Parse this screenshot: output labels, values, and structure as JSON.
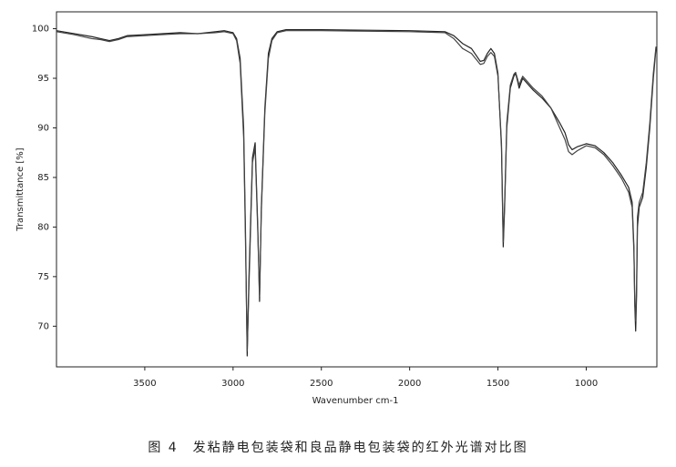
{
  "chart_data": {
    "type": "line",
    "x_label": "Wavenumber cm-1",
    "y_label": "Transmittance [%]",
    "caption": "图 4　发粘静电包装袋和良品静电包装袋的红外光谱对比图",
    "xlim": [
      4000,
      600
    ],
    "ylim": [
      65.9,
      101.7
    ],
    "xticks": [
      3500,
      3000,
      2500,
      2000,
      1500,
      1000
    ],
    "yticks": [
      70,
      75,
      80,
      85,
      90,
      95,
      100
    ],
    "x": [
      4000,
      3900,
      3800,
      3750,
      3700,
      3650,
      3600,
      3500,
      3400,
      3300,
      3200,
      3100,
      3050,
      3000,
      2980,
      2960,
      2940,
      2930,
      2920,
      2910,
      2890,
      2875,
      2860,
      2850,
      2840,
      2820,
      2800,
      2780,
      2750,
      2700,
      2500,
      2000,
      1800,
      1750,
      1700,
      1650,
      1600,
      1580,
      1560,
      1540,
      1520,
      1500,
      1480,
      1470,
      1462,
      1450,
      1430,
      1410,
      1400,
      1390,
      1380,
      1370,
      1360,
      1340,
      1300,
      1250,
      1200,
      1150,
      1120,
      1100,
      1080,
      1050,
      1000,
      950,
      900,
      850,
      800,
      760,
      740,
      730,
      725,
      720,
      715,
      710,
      700,
      680,
      660,
      640,
      620,
      605
    ],
    "series": [
      {
        "color": "#222222",
        "values": [
          99.8,
          99.5,
          99.2,
          99.0,
          98.8,
          99.0,
          99.3,
          99.4,
          99.5,
          99.6,
          99.5,
          99.7,
          99.8,
          99.6,
          99.0,
          97.0,
          90.0,
          80.0,
          67.0,
          75.0,
          87.0,
          88.5,
          80.0,
          72.5,
          82.0,
          92.0,
          97.5,
          99.0,
          99.7,
          99.9,
          99.9,
          99.8,
          99.7,
          99.3,
          98.5,
          98.0,
          96.7,
          96.8,
          97.5,
          98.0,
          97.5,
          95.5,
          88.0,
          78.0,
          82.0,
          90.0,
          94.0,
          95.2,
          95.5,
          94.8,
          94.0,
          94.5,
          95.0,
          94.6,
          93.8,
          93.0,
          92.0,
          90.5,
          89.5,
          88.3,
          87.8,
          88.1,
          88.4,
          88.2,
          87.5,
          86.5,
          85.2,
          84.0,
          82.5,
          78.0,
          72.0,
          69.5,
          73.0,
          80.0,
          82.0,
          83.0,
          86.0,
          90.0,
          95.0,
          98.0
        ]
      },
      {
        "color": "#444444",
        "values": [
          99.7,
          99.4,
          99.0,
          98.9,
          98.7,
          98.9,
          99.2,
          99.3,
          99.4,
          99.5,
          99.5,
          99.6,
          99.7,
          99.5,
          98.8,
          96.5,
          89.0,
          79.0,
          67.5,
          74.0,
          86.5,
          88.0,
          79.5,
          73.0,
          81.5,
          91.5,
          97.0,
          98.8,
          99.6,
          99.8,
          99.8,
          99.7,
          99.6,
          99.0,
          98.0,
          97.5,
          96.4,
          96.5,
          97.2,
          97.6,
          97.2,
          95.2,
          88.5,
          78.5,
          82.5,
          90.5,
          94.3,
          95.4,
          95.6,
          95.0,
          94.3,
          94.8,
          95.2,
          94.8,
          94.0,
          93.2,
          92.0,
          90.0,
          88.8,
          87.6,
          87.3,
          87.7,
          88.2,
          88.0,
          87.3,
          86.2,
          84.9,
          83.5,
          82.0,
          77.5,
          72.5,
          70.5,
          74.0,
          81.0,
          82.5,
          83.5,
          86.5,
          90.5,
          95.5,
          98.2
        ]
      }
    ]
  }
}
